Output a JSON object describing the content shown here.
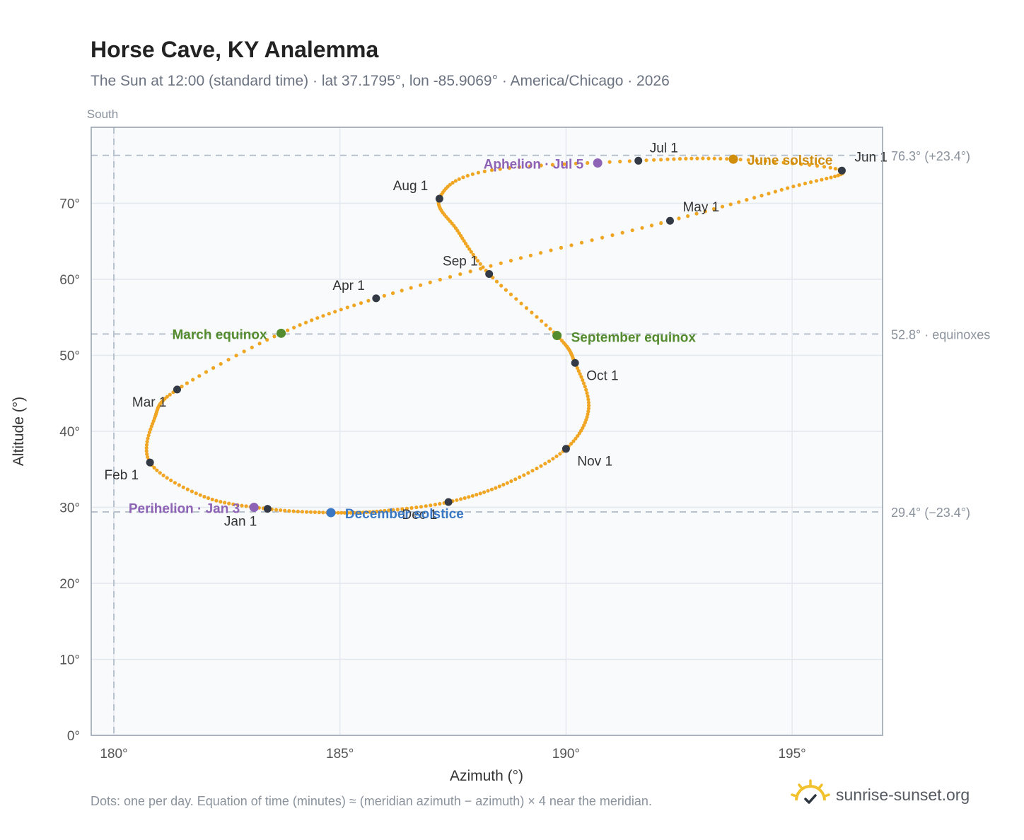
{
  "header": {
    "title": "Horse Cave, KY Analemma",
    "subtitle": "The Sun at 12:00 (standard time) · lat 37.1795°, lon -85.9069° · America/Chicago · 2026"
  },
  "footer": {
    "note": "Dots: one per day. Equation of time (minutes) ≈ (meridian azimuth − azimuth) × 4 near the meridian.",
    "brand": "sunrise-sunset.org"
  },
  "colors": {
    "path": "#f0a623",
    "month": "#343a45",
    "equinox": "#558b2f",
    "june_solstice": "#d08c0b",
    "december_solstice": "#3b78c3",
    "apsis": "#8e63b5",
    "reference": "#b8c2cd",
    "plot_bg": "#f8fafc",
    "brand_sun": "#f2c12e"
  },
  "chart_data": {
    "type": "scatter",
    "xlabel": "Azimuth (°)",
    "ylabel": "Altitude (°)",
    "xlim": [
      179.5,
      197
    ],
    "ylim": [
      0,
      80
    ],
    "x_ticks": [
      180,
      185,
      190,
      195
    ],
    "y_ticks": [
      0,
      10,
      20,
      30,
      40,
      50,
      60,
      70
    ],
    "grid": true,
    "meridian": {
      "x": 180,
      "label": "South"
    },
    "reference_lines": [
      {
        "y": 76.3,
        "label": "76.3° (+23.4°)"
      },
      {
        "y": 52.8,
        "label": "52.8° · equinoxes"
      },
      {
        "y": 29.4,
        "label": "29.4° (−23.4°)"
      }
    ],
    "months": [
      {
        "label": "Jan 1",
        "x": 183.4,
        "y": 29.8
      },
      {
        "label": "Feb 1",
        "x": 180.8,
        "y": 35.9
      },
      {
        "label": "Mar 1",
        "x": 181.4,
        "y": 45.5
      },
      {
        "label": "Apr 1",
        "x": 185.8,
        "y": 57.5
      },
      {
        "label": "May 1",
        "x": 192.3,
        "y": 67.7
      },
      {
        "label": "Jun 1",
        "x": 196.1,
        "y": 74.3
      },
      {
        "label": "Jul 1",
        "x": 191.6,
        "y": 75.6
      },
      {
        "label": "Aug 1",
        "x": 187.2,
        "y": 70.6
      },
      {
        "label": "Sep 1",
        "x": 188.3,
        "y": 60.7
      },
      {
        "label": "Oct 1",
        "x": 190.2,
        "y": 49.0
      },
      {
        "label": "Nov 1",
        "x": 190.0,
        "y": 37.7
      },
      {
        "label": "Dec 1",
        "x": 187.4,
        "y": 30.7
      }
    ],
    "events": [
      {
        "label": "March equinox",
        "x": 183.7,
        "y": 52.9,
        "kind": "equinox"
      },
      {
        "label": "September equinox",
        "x": 189.8,
        "y": 52.6,
        "kind": "equinox"
      },
      {
        "label": "June solstice",
        "x": 193.7,
        "y": 75.8,
        "kind": "june_solstice"
      },
      {
        "label": "December solstice",
        "x": 184.8,
        "y": 29.3,
        "kind": "december_solstice"
      },
      {
        "label": "Perihelion · Jan 3",
        "x": 183.1,
        "y": 30.0,
        "kind": "apsis"
      },
      {
        "label": "Aphelion · Jul 5",
        "x": 190.7,
        "y": 75.3,
        "kind": "apsis"
      }
    ],
    "series": [
      {
        "points": [
          [
            183.4,
            29.8
          ],
          [
            182.0,
            31.4
          ],
          [
            180.8,
            35.9
          ],
          [
            180.9,
            41.7
          ],
          [
            181.4,
            45.5
          ],
          [
            183.7,
            52.9
          ],
          [
            185.8,
            57.5
          ],
          [
            189.0,
            62.8
          ],
          [
            192.3,
            67.7
          ],
          [
            194.9,
            72.0
          ],
          [
            196.1,
            74.3
          ],
          [
            193.7,
            75.8
          ],
          [
            191.6,
            75.6
          ],
          [
            188.2,
            74.2
          ],
          [
            187.2,
            70.6
          ],
          [
            187.6,
            66.4
          ],
          [
            188.3,
            60.7
          ],
          [
            189.8,
            52.6
          ],
          [
            190.2,
            49.0
          ],
          [
            190.5,
            43.0
          ],
          [
            190.0,
            37.7
          ],
          [
            188.7,
            33.2
          ],
          [
            187.4,
            30.7
          ],
          [
            185.9,
            29.5
          ],
          [
            184.8,
            29.3
          ],
          [
            183.4,
            29.8
          ]
        ]
      }
    ]
  }
}
